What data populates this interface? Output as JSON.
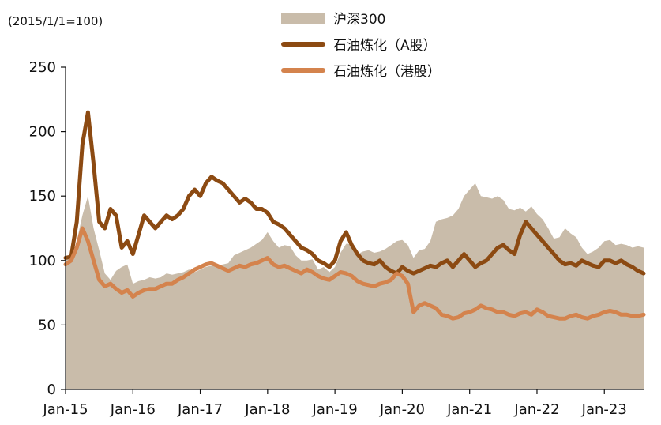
{
  "chart_data": {
    "type": "line",
    "ylabel": "(2015/1/1=100)",
    "ylim": [
      0,
      250
    ],
    "yticks": [
      0,
      50,
      100,
      150,
      200,
      250
    ],
    "xticks": [
      "Jan-15",
      "Jan-16",
      "Jan-17",
      "Jan-18",
      "Jan-19",
      "Jan-20",
      "Jan-21",
      "Jan-22",
      "Jan-23"
    ],
    "xlim": [
      "2015-01",
      "2023-08"
    ],
    "grid": false,
    "legend_position": "top-right",
    "x": [
      "2015-01",
      "2015-02",
      "2015-03",
      "2015-04",
      "2015-05",
      "2015-06",
      "2015-07",
      "2015-08",
      "2015-09",
      "2015-10",
      "2015-11",
      "2015-12",
      "2016-01",
      "2016-02",
      "2016-03",
      "2016-04",
      "2016-05",
      "2016-06",
      "2016-07",
      "2016-08",
      "2016-09",
      "2016-10",
      "2016-11",
      "2016-12",
      "2017-01",
      "2017-02",
      "2017-03",
      "2017-04",
      "2017-05",
      "2017-06",
      "2017-07",
      "2017-08",
      "2017-09",
      "2017-10",
      "2017-11",
      "2017-12",
      "2018-01",
      "2018-02",
      "2018-03",
      "2018-04",
      "2018-05",
      "2018-06",
      "2018-07",
      "2018-08",
      "2018-09",
      "2018-10",
      "2018-11",
      "2018-12",
      "2019-01",
      "2019-02",
      "2019-03",
      "2019-04",
      "2019-05",
      "2019-06",
      "2019-07",
      "2019-08",
      "2019-09",
      "2019-10",
      "2019-11",
      "2019-12",
      "2020-01",
      "2020-02",
      "2020-03",
      "2020-04",
      "2020-05",
      "2020-06",
      "2020-07",
      "2020-08",
      "2020-09",
      "2020-10",
      "2020-11",
      "2020-12",
      "2021-01",
      "2021-02",
      "2021-03",
      "2021-04",
      "2021-05",
      "2021-06",
      "2021-07",
      "2021-08",
      "2021-09",
      "2021-10",
      "2021-11",
      "2021-12",
      "2022-01",
      "2022-02",
      "2022-03",
      "2022-04",
      "2022-05",
      "2022-06",
      "2022-07",
      "2022-08",
      "2022-09",
      "2022-10",
      "2022-11",
      "2022-12",
      "2023-01",
      "2023-02",
      "2023-03",
      "2023-04",
      "2023-05",
      "2023-06",
      "2023-07",
      "2023-08"
    ],
    "series": [
      {
        "name": "沪深300",
        "kind": "area",
        "color": "#c9bcaa",
        "values": [
          100,
          102,
          115,
          135,
          150,
          125,
          108,
          90,
          85,
          92,
          95,
          97,
          82,
          84,
          85,
          87,
          86,
          87,
          90,
          89,
          90,
          91,
          93,
          91,
          93,
          95,
          96,
          96,
          97,
          98,
          104,
          106,
          108,
          110,
          113,
          116,
          122,
          115,
          110,
          112,
          111,
          104,
          100,
          100,
          101,
          93,
          95,
          91,
          95,
          106,
          113,
          113,
          105,
          107,
          108,
          106,
          107,
          109,
          112,
          115,
          116,
          112,
          102,
          108,
          109,
          115,
          130,
          132,
          133,
          135,
          140,
          150,
          155,
          160,
          150,
          149,
          148,
          150,
          147,
          140,
          139,
          141,
          138,
          142,
          136,
          132,
          125,
          117,
          118,
          125,
          121,
          118,
          110,
          105,
          107,
          110,
          115,
          116,
          112,
          113,
          112,
          110,
          111,
          110
        ]
      },
      {
        "name": "石油炼化（A股）",
        "kind": "line",
        "color": "#8c4a12",
        "values": [
          102,
          103,
          130,
          190,
          215,
          175,
          130,
          125,
          140,
          135,
          110,
          115,
          105,
          120,
          135,
          130,
          125,
          130,
          135,
          132,
          135,
          140,
          150,
          155,
          150,
          160,
          165,
          162,
          160,
          155,
          150,
          145,
          148,
          145,
          140,
          140,
          137,
          130,
          128,
          125,
          120,
          115,
          110,
          108,
          105,
          100,
          98,
          95,
          100,
          115,
          122,
          112,
          105,
          100,
          98,
          97,
          100,
          95,
          92,
          90,
          95,
          92,
          90,
          92,
          94,
          96,
          95,
          98,
          100,
          95,
          100,
          105,
          100,
          95,
          98,
          100,
          105,
          110,
          112,
          108,
          105,
          120,
          130,
          125,
          120,
          115,
          110,
          105,
          100,
          97,
          98,
          96,
          100,
          98,
          96,
          95,
          100,
          100,
          98,
          100,
          97,
          95,
          92,
          90
        ]
      },
      {
        "name": "石油炼化（港股）",
        "kind": "line",
        "color": "#d4834d",
        "values": [
          97,
          100,
          110,
          125,
          115,
          100,
          85,
          80,
          82,
          78,
          75,
          77,
          72,
          75,
          77,
          78,
          78,
          80,
          82,
          82,
          85,
          87,
          90,
          93,
          95,
          97,
          98,
          96,
          94,
          92,
          94,
          96,
          95,
          97,
          98,
          100,
          102,
          97,
          95,
          96,
          94,
          92,
          90,
          93,
          91,
          88,
          86,
          85,
          88,
          91,
          90,
          88,
          84,
          82,
          81,
          80,
          82,
          83,
          85,
          90,
          88,
          82,
          60,
          65,
          67,
          65,
          63,
          58,
          57,
          55,
          56,
          59,
          60,
          62,
          65,
          63,
          62,
          60,
          60,
          58,
          57,
          59,
          60,
          58,
          62,
          60,
          57,
          56,
          55,
          55,
          57,
          58,
          56,
          55,
          57,
          58,
          60,
          61,
          60,
          58,
          58,
          57,
          57,
          58
        ]
      }
    ]
  }
}
